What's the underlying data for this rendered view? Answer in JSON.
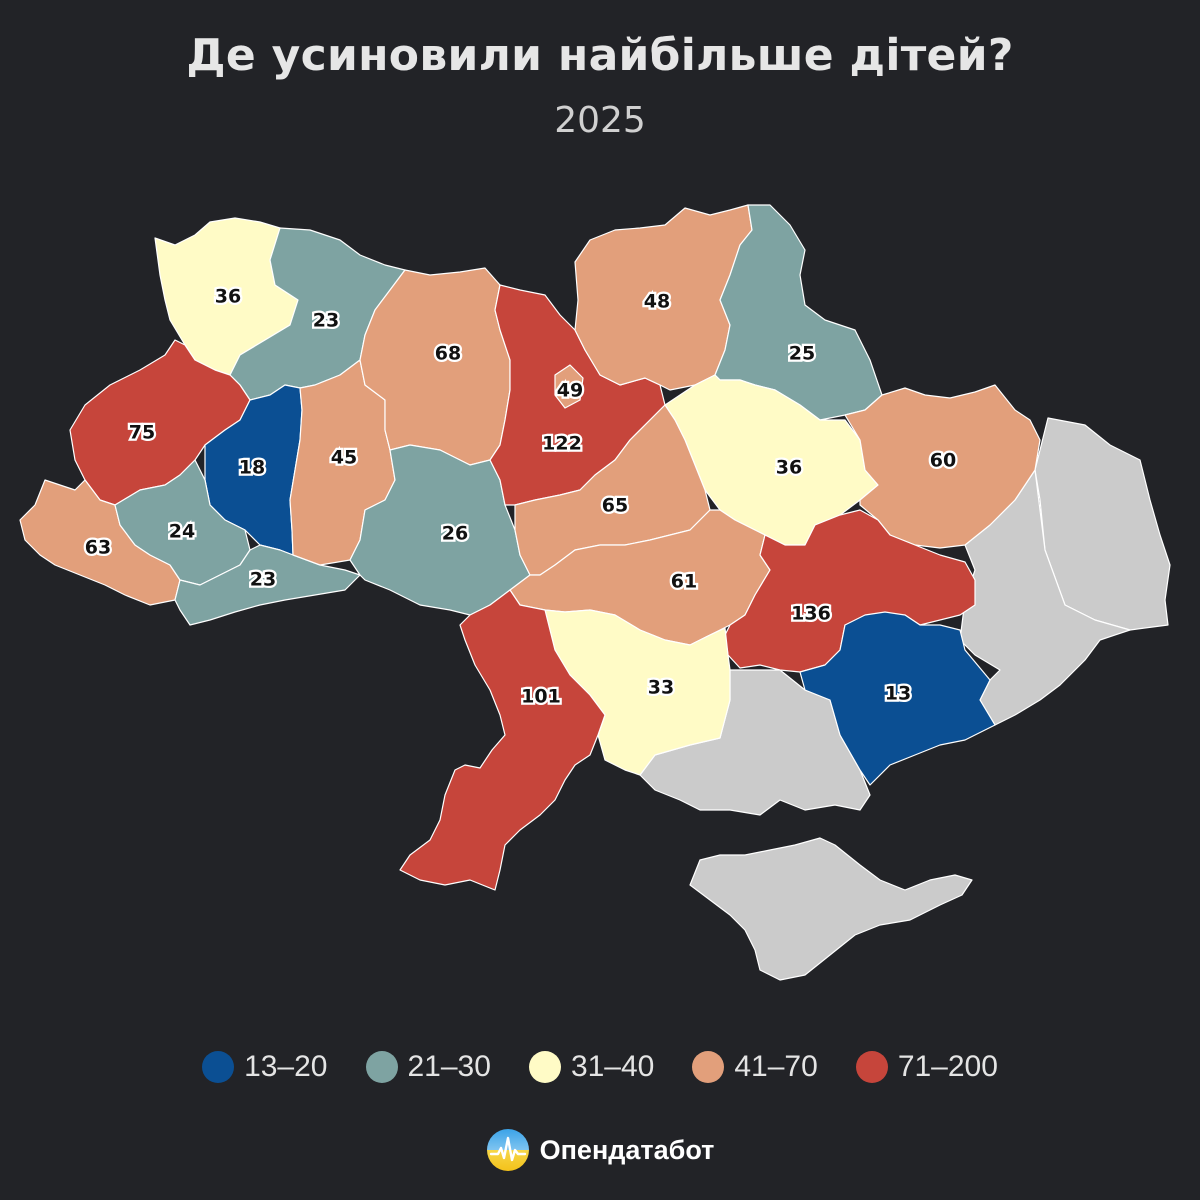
{
  "header": {
    "title": "Де усиновили найбільше дітей?",
    "subtitle": "2025"
  },
  "colors": {
    "background": "#222327",
    "bin_13_20": "#0b4f93",
    "bin_21_30": "#7ea3a2",
    "bin_31_40": "#fffbc6",
    "bin_41_70": "#e29f7b",
    "bin_71_200": "#c6453b",
    "no_data": "#cbcbcb"
  },
  "legend": [
    {
      "label": "13–20",
      "color": "#0b4f93"
    },
    {
      "label": "21–30",
      "color": "#7ea3a2"
    },
    {
      "label": "31–40",
      "color": "#fffbc6"
    },
    {
      "label": "41–70",
      "color": "#e29f7b"
    },
    {
      "label": "71–200",
      "color": "#c6453b"
    }
  ],
  "regions": [
    {
      "id": "volyn",
      "label": "36",
      "value": 36
    },
    {
      "id": "rivne",
      "label": "23",
      "value": 23
    },
    {
      "id": "lviv",
      "label": "75",
      "value": 75
    },
    {
      "id": "ternopil",
      "label": "18",
      "value": 18
    },
    {
      "id": "zakarpattia",
      "label": "63",
      "value": 63
    },
    {
      "id": "ivano-frankivsk",
      "label": "24",
      "value": 24
    },
    {
      "id": "chernivtsi",
      "label": "23",
      "value": 23
    },
    {
      "id": "khmelnytskyi",
      "label": "45",
      "value": 45
    },
    {
      "id": "zhytomyr",
      "label": "68",
      "value": 68
    },
    {
      "id": "vinnytsia",
      "label": "26",
      "value": 26
    },
    {
      "id": "kyiv-oblast",
      "label": "122",
      "value": 122
    },
    {
      "id": "kyiv-city",
      "label": "49",
      "value": 49
    },
    {
      "id": "chernihiv",
      "label": "48",
      "value": 48
    },
    {
      "id": "sumy",
      "label": "25",
      "value": 25
    },
    {
      "id": "poltava",
      "label": "36",
      "value": 36
    },
    {
      "id": "kharkiv",
      "label": "60",
      "value": 60
    },
    {
      "id": "cherkasy",
      "label": "65",
      "value": 65
    },
    {
      "id": "kirovohrad",
      "label": "61",
      "value": 61
    },
    {
      "id": "dnipropetrovsk",
      "label": "136",
      "value": 136
    },
    {
      "id": "zaporizhzhia",
      "label": "13",
      "value": 13
    },
    {
      "id": "mykolaiv",
      "label": "33",
      "value": 33
    },
    {
      "id": "odesa",
      "label": "101",
      "value": 101
    }
  ],
  "brand": {
    "name": "Опендатабот",
    "logo_icon": "opendatabot-logo-icon"
  }
}
